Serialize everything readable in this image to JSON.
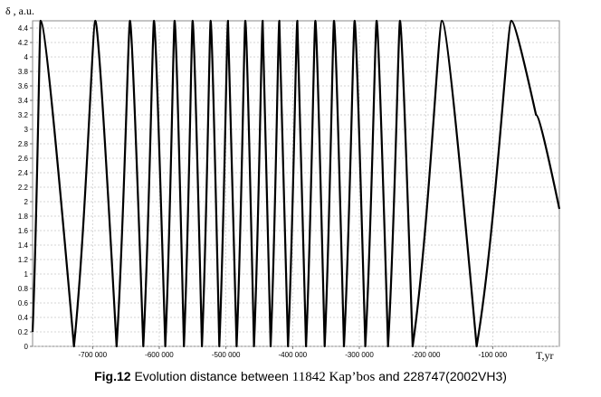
{
  "chart_data": {
    "type": "line",
    "ylabel": "δ , a.u.",
    "xlabel": "T,yr",
    "xlim": [
      -790000,
      0
    ],
    "ylim": [
      0,
      4.5
    ],
    "grid": true,
    "x_ticks": [
      -700000,
      -600000,
      -500000,
      -400000,
      -300000,
      -200000,
      -100000
    ],
    "x_tick_labels": [
      "-700 000",
      "-600 000",
      "-500 000",
      "-400 000",
      "-300 000",
      "-200 000",
      "-100 000"
    ],
    "y_ticks": [
      0,
      0.2,
      0.4,
      0.6,
      0.8,
      1,
      1.2,
      1.4,
      1.6,
      1.8,
      2,
      2.2,
      2.4,
      2.6,
      2.8,
      3,
      3.2,
      3.4,
      3.6,
      3.8,
      4,
      4.2,
      4.4
    ],
    "y_tick_labels": [
      "0",
      "0.2",
      "0.4",
      "0.6",
      "0.8",
      "1",
      "1.2",
      "1.4",
      "1.6",
      "1.8",
      "2",
      "2.2",
      "2.4",
      "2.6",
      "2.8",
      "3",
      "3.2",
      "3.4",
      "3.6",
      "3.8",
      "4",
      "4.2",
      "4.4"
    ],
    "series": [
      {
        "x": [
          -790000,
          -778000,
          -728000,
          -696000,
          -664000,
          -644000,
          -624000,
          -608000,
          -591000,
          -577000,
          -563000,
          -550000,
          -536000,
          -523000,
          -510000,
          -497000,
          -484000,
          -471000,
          -458000,
          -445000,
          -433000,
          -420000,
          -407000,
          -393000,
          -380000,
          -366000,
          -352000,
          -338000,
          -323000,
          -307000,
          -291000,
          -274000,
          -257000,
          -239000,
          -220000,
          -176000,
          -124000,
          -72000,
          -35000,
          0
        ],
        "y": [
          0.2,
          4.5,
          0.0,
          4.5,
          0.0,
          4.5,
          0.0,
          4.5,
          0.0,
          4.5,
          0.0,
          4.5,
          0.0,
          4.5,
          0.0,
          4.5,
          0.0,
          4.5,
          0.0,
          4.5,
          0.0,
          4.5,
          0.0,
          4.5,
          0.0,
          4.5,
          0.0,
          4.5,
          0.0,
          4.5,
          0.0,
          4.5,
          0.0,
          4.5,
          0.0,
          4.5,
          0.0,
          4.5,
          3.2,
          1.9
        ]
      }
    ]
  },
  "caption": {
    "label": "Fig.12",
    "text_a": " Evolution distance between ",
    "text_b": "11842 Kap’bos",
    "text_c": "  and 228747(2002VH3)"
  }
}
